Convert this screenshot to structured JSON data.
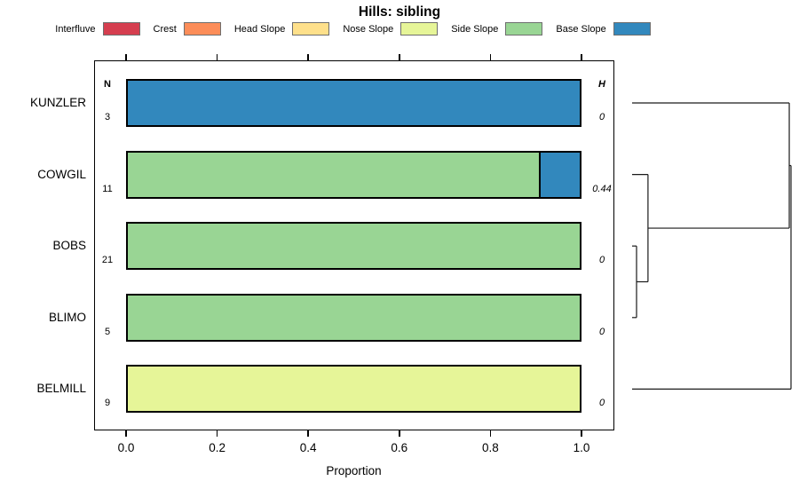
{
  "title": "Hills: sibling",
  "legend": {
    "items": [
      {
        "label": "Interfluve",
        "color": "#D53E4F"
      },
      {
        "label": "Crest",
        "color": "#FC8D59"
      },
      {
        "label": "Head Slope",
        "color": "#FEE08B"
      },
      {
        "label": "Nose Slope",
        "color": "#E6F598"
      },
      {
        "label": "Side Slope",
        "color": "#99D594"
      },
      {
        "label": "Base Slope",
        "color": "#3288BD"
      }
    ]
  },
  "columns": {
    "n_header": "N",
    "h_header": "H"
  },
  "axis": {
    "x_ticks": [
      "0.0",
      "0.2",
      "0.4",
      "0.6",
      "0.8",
      "1.0"
    ],
    "xlabel": "Proportion"
  },
  "rows": [
    {
      "label": "KUNZLER",
      "n": "3",
      "h": "0",
      "segments": [
        {
          "class": "Base Slope",
          "color": "#3288BD",
          "proportion": 1.0
        }
      ]
    },
    {
      "label": "COWGIL",
      "n": "11",
      "h": "0.44",
      "segments": [
        {
          "class": "Side Slope",
          "color": "#99D594",
          "proportion": 0.91
        },
        {
          "class": "Base Slope",
          "color": "#3288BD",
          "proportion": 0.09
        }
      ]
    },
    {
      "label": "BOBS",
      "n": "21",
      "h": "0",
      "segments": [
        {
          "class": "Side Slope",
          "color": "#99D594",
          "proportion": 1.0
        }
      ]
    },
    {
      "label": "BLIMO",
      "n": "5",
      "h": "0",
      "segments": [
        {
          "class": "Side Slope",
          "color": "#99D594",
          "proportion": 1.0
        }
      ]
    },
    {
      "label": "BELMILL",
      "n": "9",
      "h": "0",
      "segments": [
        {
          "class": "Nose Slope",
          "color": "#E6F598",
          "proportion": 1.0
        }
      ]
    }
  ],
  "chart_data": {
    "type": "bar",
    "subtype": "horizontal-stacked-proportion-with-dendrogram",
    "title": "Hills: sibling",
    "xlabel": "Proportion",
    "xlim": [
      0,
      1
    ],
    "x_ticks": [
      0.0,
      0.2,
      0.4,
      0.6,
      0.8,
      1.0
    ],
    "categories": [
      "KUNZLER",
      "COWGIL",
      "BOBS",
      "BLIMO",
      "BELMILL"
    ],
    "classes": [
      "Interfluve",
      "Crest",
      "Head Slope",
      "Nose Slope",
      "Side Slope",
      "Base Slope"
    ],
    "class_colors": [
      "#D53E4F",
      "#FC8D59",
      "#FEE08B",
      "#E6F598",
      "#99D594",
      "#3288BD"
    ],
    "N": [
      3,
      11,
      21,
      5,
      9
    ],
    "H": [
      0,
      0.44,
      0,
      0,
      0
    ],
    "proportions": [
      {
        "Base Slope": 1.0
      },
      {
        "Side Slope": 0.91,
        "Base Slope": 0.09
      },
      {
        "Side Slope": 1.0
      },
      {
        "Side Slope": 1.0
      },
      {
        "Nose Slope": 1.0
      }
    ],
    "legend_position": "top",
    "grid": false,
    "dendrogram": {
      "orientation": "leaves-left-root-right",
      "leaves_top_to_bottom": [
        "KUNZLER",
        "COWGIL",
        "BOBS",
        "BLIMO",
        "BELMILL"
      ],
      "tree": {
        "h": 1.0,
        "children": [
          {
            "h": 0.989,
            "children": [
              {
                "leaf": "KUNZLER"
              },
              {
                "h": 0.1,
                "children": [
                  {
                    "leaf": "COWGIL"
                  },
                  {
                    "h": 0.028,
                    "children": [
                      {
                        "leaf": "BOBS"
                      },
                      {
                        "leaf": "BLIMO"
                      }
                    ]
                  }
                ]
              }
            ]
          },
          {
            "leaf": "BELMILL"
          }
        ]
      }
    }
  }
}
